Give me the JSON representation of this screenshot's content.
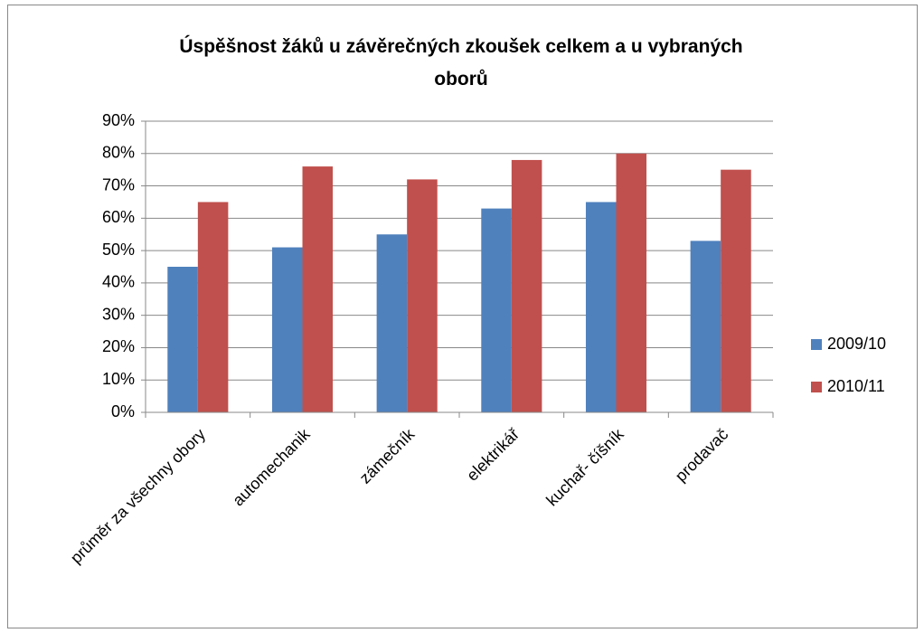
{
  "chart_data": {
    "type": "bar",
    "title": "Úspěšnost žáků u závěrečných zkoušek  celkem a u vybraných\noborů",
    "categories": [
      "průměr za všechny obory",
      "automechanik",
      "zámečník",
      "elektrikář",
      "kuchař- číšník",
      "prodavač"
    ],
    "series": [
      {
        "name": "2009/10",
        "color": "#4f81bd",
        "values": [
          45,
          51,
          55,
          63,
          65,
          53
        ]
      },
      {
        "name": "2010/11",
        "color": "#c0504d",
        "values": [
          65,
          76,
          72,
          78,
          80,
          75
        ]
      }
    ],
    "ylim": [
      0,
      90
    ],
    "yticks": [
      {
        "value": 0,
        "label": "0%"
      },
      {
        "value": 10,
        "label": "10%"
      },
      {
        "value": 20,
        "label": "20%"
      },
      {
        "value": 30,
        "label": "30%"
      },
      {
        "value": 40,
        "label": "40%"
      },
      {
        "value": 50,
        "label": "50%"
      },
      {
        "value": 60,
        "label": "60%"
      },
      {
        "value": 70,
        "label": "70%"
      },
      {
        "value": 80,
        "label": "80%"
      },
      {
        "value": 90,
        "label": "90%"
      }
    ],
    "grid": true,
    "legend": "right"
  }
}
